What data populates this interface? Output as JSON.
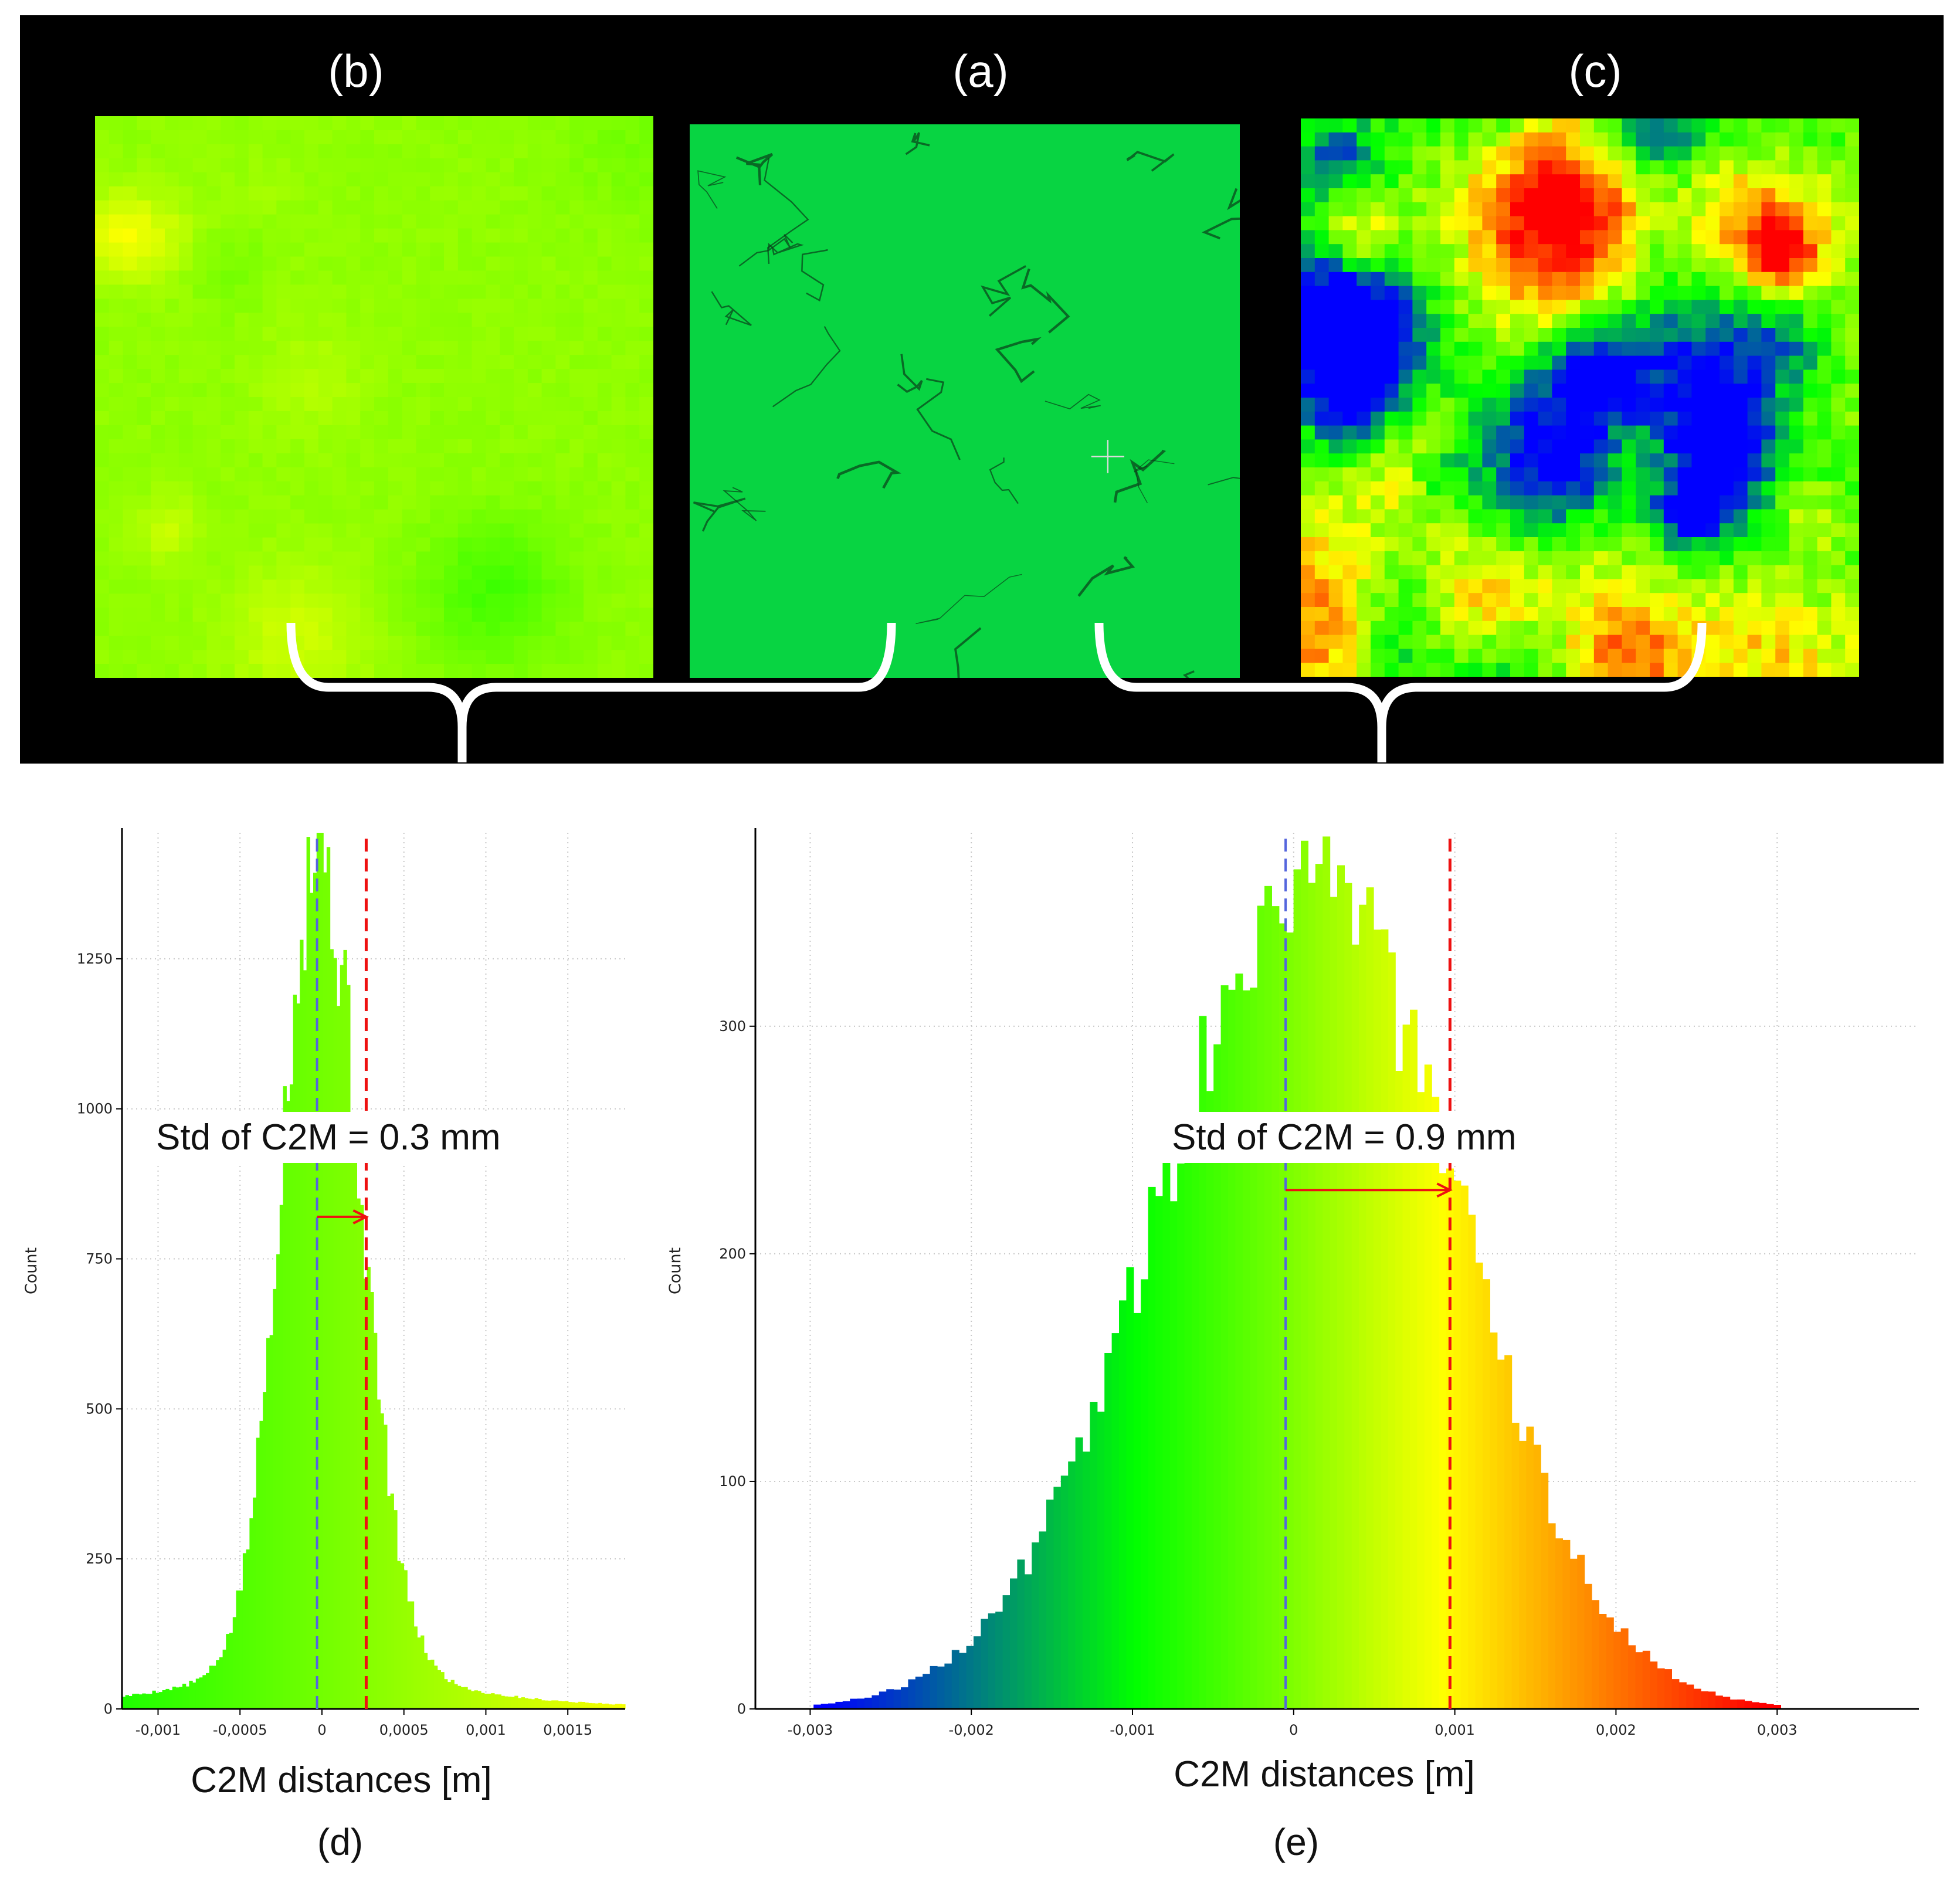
{
  "colors": {
    "background_top": "#000000",
    "bracket": "#ffffff",
    "mean_line": "#5566dd",
    "std_line": "#ee1111",
    "arrow": "#ee1111"
  },
  "panels": {
    "b": {
      "label": "(b)",
      "scale": "narrow"
    },
    "a": {
      "label": "(a)",
      "color": "#08d442"
    },
    "c": {
      "label": "(c)",
      "scale": "wide"
    }
  },
  "chart_data": [
    {
      "id": "d",
      "type": "bar",
      "title": "",
      "xlabel": "C2M distances [m]",
      "ylabel": "Count",
      "caption": "(d)",
      "annotation": "Std of C2M = 0.3 mm",
      "x_ticks": [
        -0.001,
        -0.0005,
        0,
        0.0005,
        0.001,
        0.0015
      ],
      "x_tick_labels": [
        "-0,001",
        "-0,0005",
        "0",
        "0,0005",
        "0,001",
        "0,0015"
      ],
      "y_ticks": [
        0,
        250,
        500,
        750,
        1000,
        1250
      ],
      "y_tick_labels": [
        "0",
        "250",
        "500",
        "750",
        "1000",
        "1250"
      ],
      "xlim": [
        -0.00122,
        0.00185
      ],
      "ylim": [
        0,
        1460
      ],
      "color_range": [
        -0.0053,
        0.0057
      ],
      "bins": 150,
      "distribution": {
        "peak_x": -3e-05,
        "peak_count": 1455,
        "sigma_left": 0.00022,
        "sigma_right": 0.00026,
        "tail_weight": 0.09,
        "tail_scale": 0.00065
      },
      "mean": -3e-05,
      "std_line": 0.00027,
      "arrow_y": 820
    },
    {
      "id": "e",
      "type": "bar",
      "title": "",
      "xlabel": "C2M distances [m]",
      "ylabel": "Count",
      "caption": "(e)",
      "annotation": "Std of C2M = 0.9 mm",
      "x_ticks": [
        -0.003,
        -0.002,
        -0.001,
        0,
        0.001,
        0.002,
        0.003
      ],
      "x_tick_labels": [
        "-0,003",
        "-0,002",
        "-0,001",
        "0",
        "0,001",
        "0,002",
        "0,003"
      ],
      "y_ticks": [
        0,
        100,
        200,
        300
      ],
      "y_tick_labels": [
        "0",
        "100",
        "200",
        "300"
      ],
      "xlim": [
        -0.00334,
        0.00388
      ],
      "ylim": [
        0,
        385
      ],
      "color_range": [
        -0.0029,
        0.0029
      ],
      "bins": 160,
      "distribution": {
        "peak_x": 0.00012,
        "peak_count": 370,
        "sigma_left": 0.00095,
        "sigma_right": 0.00088,
        "tail_weight": 0.0,
        "tail_scale": 0.001
      },
      "mean": -5e-05,
      "std_line": 0.00097,
      "arrow_y": 228
    }
  ]
}
